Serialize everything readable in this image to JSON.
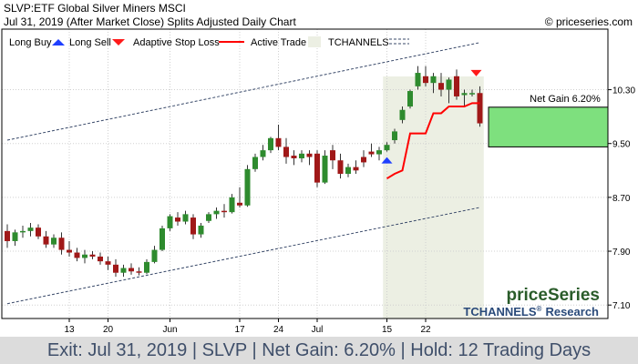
{
  "header": {
    "title": "SLVP:ETF Global Silver Miners MSCI",
    "subtitle": "Jul 31, 2019 (After Market Close)  Splits Adjusted Daily Chart",
    "copyright": "© priceseries.com"
  },
  "legend": {
    "long_buy": "Long Buy",
    "long_sell": "Long Sell",
    "adaptive_stop": "Adaptive Stop Loss",
    "active_trade": "Active Trade",
    "tchannels": "TCHANNELS"
  },
  "branding": {
    "logo": "priceSeries",
    "research": "TCHANNELS",
    "research_suffix": "Research",
    "registered": "®"
  },
  "footer": {
    "text": "Exit: Jul 31, 2019 | SLVP | Net Gain: 6.20% | Hold: 12 Trading Days"
  },
  "colors": {
    "up": "#2e8b2e",
    "down": "#a01818",
    "stop": "#ff0000",
    "active_trade": "#ecefe3",
    "gain_box": "#7ee07e",
    "channel": "#3a4a6a",
    "buy_arrow": "#1f3fff",
    "sell_arrow": "#ff1a1a"
  },
  "chart_data": {
    "type": "candlestick",
    "ylim": [
      6.9,
      11.2
    ],
    "y_ticks": [
      "7.10",
      "7.90",
      "8.70",
      "9.50",
      "10.30"
    ],
    "x_ticks": [
      {
        "index": 8,
        "label": "13"
      },
      {
        "index": 13,
        "label": "20"
      },
      {
        "index": 21,
        "label": "Jun"
      },
      {
        "index": 30,
        "label": "17"
      },
      {
        "index": 35,
        "label": "24"
      },
      {
        "index": 40,
        "label": "Jul"
      },
      {
        "index": 49,
        "label": "15"
      },
      {
        "index": 54,
        "label": "22"
      }
    ],
    "candles": [
      [
        8.2,
        8.3,
        7.95,
        8.05
      ],
      [
        8.05,
        8.22,
        7.98,
        8.18
      ],
      [
        8.18,
        8.28,
        8.1,
        8.2
      ],
      [
        8.2,
        8.32,
        8.12,
        8.25
      ],
      [
        8.25,
        8.3,
        8.08,
        8.12
      ],
      [
        8.12,
        8.2,
        7.95,
        8.0
      ],
      [
        8.0,
        8.15,
        7.95,
        8.1
      ],
      [
        8.1,
        8.18,
        7.85,
        7.92
      ],
      [
        7.92,
        8.05,
        7.82,
        7.88
      ],
      [
        7.88,
        7.95,
        7.75,
        7.8
      ],
      [
        7.8,
        7.92,
        7.72,
        7.85
      ],
      [
        7.85,
        7.9,
        7.78,
        7.82
      ],
      [
        7.82,
        7.88,
        7.7,
        7.75
      ],
      [
        7.75,
        7.82,
        7.62,
        7.7
      ],
      [
        7.7,
        7.78,
        7.52,
        7.58
      ],
      [
        7.58,
        7.7,
        7.52,
        7.65
      ],
      [
        7.65,
        7.72,
        7.55,
        7.6
      ],
      [
        7.6,
        7.66,
        7.54,
        7.58
      ],
      [
        7.58,
        7.78,
        7.56,
        7.74
      ],
      [
        7.74,
        7.98,
        7.72,
        7.92
      ],
      [
        7.92,
        8.28,
        7.9,
        8.24
      ],
      [
        8.24,
        8.45,
        8.2,
        8.42
      ],
      [
        8.4,
        8.48,
        8.28,
        8.34
      ],
      [
        8.34,
        8.5,
        8.3,
        8.45
      ],
      [
        8.4,
        8.45,
        8.08,
        8.15
      ],
      [
        8.15,
        8.32,
        8.1,
        8.28
      ],
      [
        8.35,
        8.48,
        8.32,
        8.45
      ],
      [
        8.45,
        8.55,
        8.38,
        8.5
      ],
      [
        8.5,
        8.6,
        8.4,
        8.48
      ],
      [
        8.48,
        8.75,
        8.46,
        8.7
      ],
      [
        8.62,
        8.85,
        8.55,
        8.58
      ],
      [
        8.58,
        9.18,
        8.56,
        9.12
      ],
      [
        9.12,
        9.35,
        9.08,
        9.3
      ],
      [
        9.3,
        9.48,
        9.25,
        9.4
      ],
      [
        9.4,
        9.6,
        9.36,
        9.58
      ],
      [
        9.58,
        9.78,
        9.4,
        9.45
      ],
      [
        9.45,
        9.58,
        9.2,
        9.3
      ],
      [
        9.32,
        9.4,
        9.18,
        9.28
      ],
      [
        9.28,
        9.4,
        9.22,
        9.35
      ],
      [
        9.35,
        9.4,
        9.18,
        9.3
      ],
      [
        9.35,
        9.4,
        8.85,
        8.92
      ],
      [
        8.92,
        9.4,
        8.9,
        9.32
      ],
      [
        9.4,
        9.48,
        9.12,
        9.25
      ],
      [
        9.25,
        9.35,
        8.98,
        9.05
      ],
      [
        9.05,
        9.2,
        9.0,
        9.15
      ],
      [
        9.15,
        9.25,
        9.05,
        9.1
      ],
      [
        9.3,
        9.4,
        9.15,
        9.22
      ],
      [
        9.38,
        9.5,
        9.3,
        9.34
      ],
      [
        9.34,
        9.45,
        9.25,
        9.4
      ],
      [
        9.4,
        9.52,
        9.38,
        9.48
      ],
      [
        9.55,
        9.72,
        9.5,
        9.68
      ],
      [
        9.85,
        10.05,
        9.8,
        10.0
      ],
      [
        10.05,
        10.3,
        10.02,
        10.28
      ],
      [
        10.35,
        10.65,
        10.3,
        10.55
      ],
      [
        10.5,
        10.65,
        10.35,
        10.4
      ],
      [
        10.4,
        10.55,
        10.25,
        10.5
      ],
      [
        10.4,
        10.55,
        10.2,
        10.3
      ],
      [
        10.3,
        10.48,
        10.1,
        10.45
      ],
      [
        10.5,
        10.6,
        10.15,
        10.2
      ],
      [
        10.22,
        10.3,
        10.05,
        10.25
      ],
      [
        10.25,
        10.3,
        10.2,
        10.25
      ],
      [
        10.25,
        10.35,
        9.75,
        9.8
      ]
    ],
    "stop_loss": [
      {
        "index": 49,
        "value": 8.98
      },
      {
        "index": 50,
        "value": 9.05
      },
      {
        "index": 51,
        "value": 9.1
      },
      {
        "index": 52,
        "value": 9.65
      },
      {
        "index": 53,
        "value": 9.65
      },
      {
        "index": 54,
        "value": 9.65
      },
      {
        "index": 55,
        "value": 9.95
      },
      {
        "index": 56,
        "value": 9.95
      },
      {
        "index": 57,
        "value": 10.05
      },
      {
        "index": 58,
        "value": 10.05
      },
      {
        "index": 59,
        "value": 10.05
      },
      {
        "index": 60,
        "value": 10.1
      },
      {
        "index": 61,
        "value": 10.1
      }
    ],
    "active_trade": {
      "start_index": 49,
      "end_index": 61
    },
    "buy_index": 49,
    "sell_index": 61,
    "channel_upper": [
      [
        0,
        9.55
      ],
      [
        61,
        11.0
      ]
    ],
    "channel_lower": [
      [
        0,
        7.12
      ],
      [
        61,
        8.55
      ]
    ],
    "gain_box": {
      "from": 9.45,
      "to": 10.04,
      "label": "Net Gain 6.20%"
    }
  }
}
